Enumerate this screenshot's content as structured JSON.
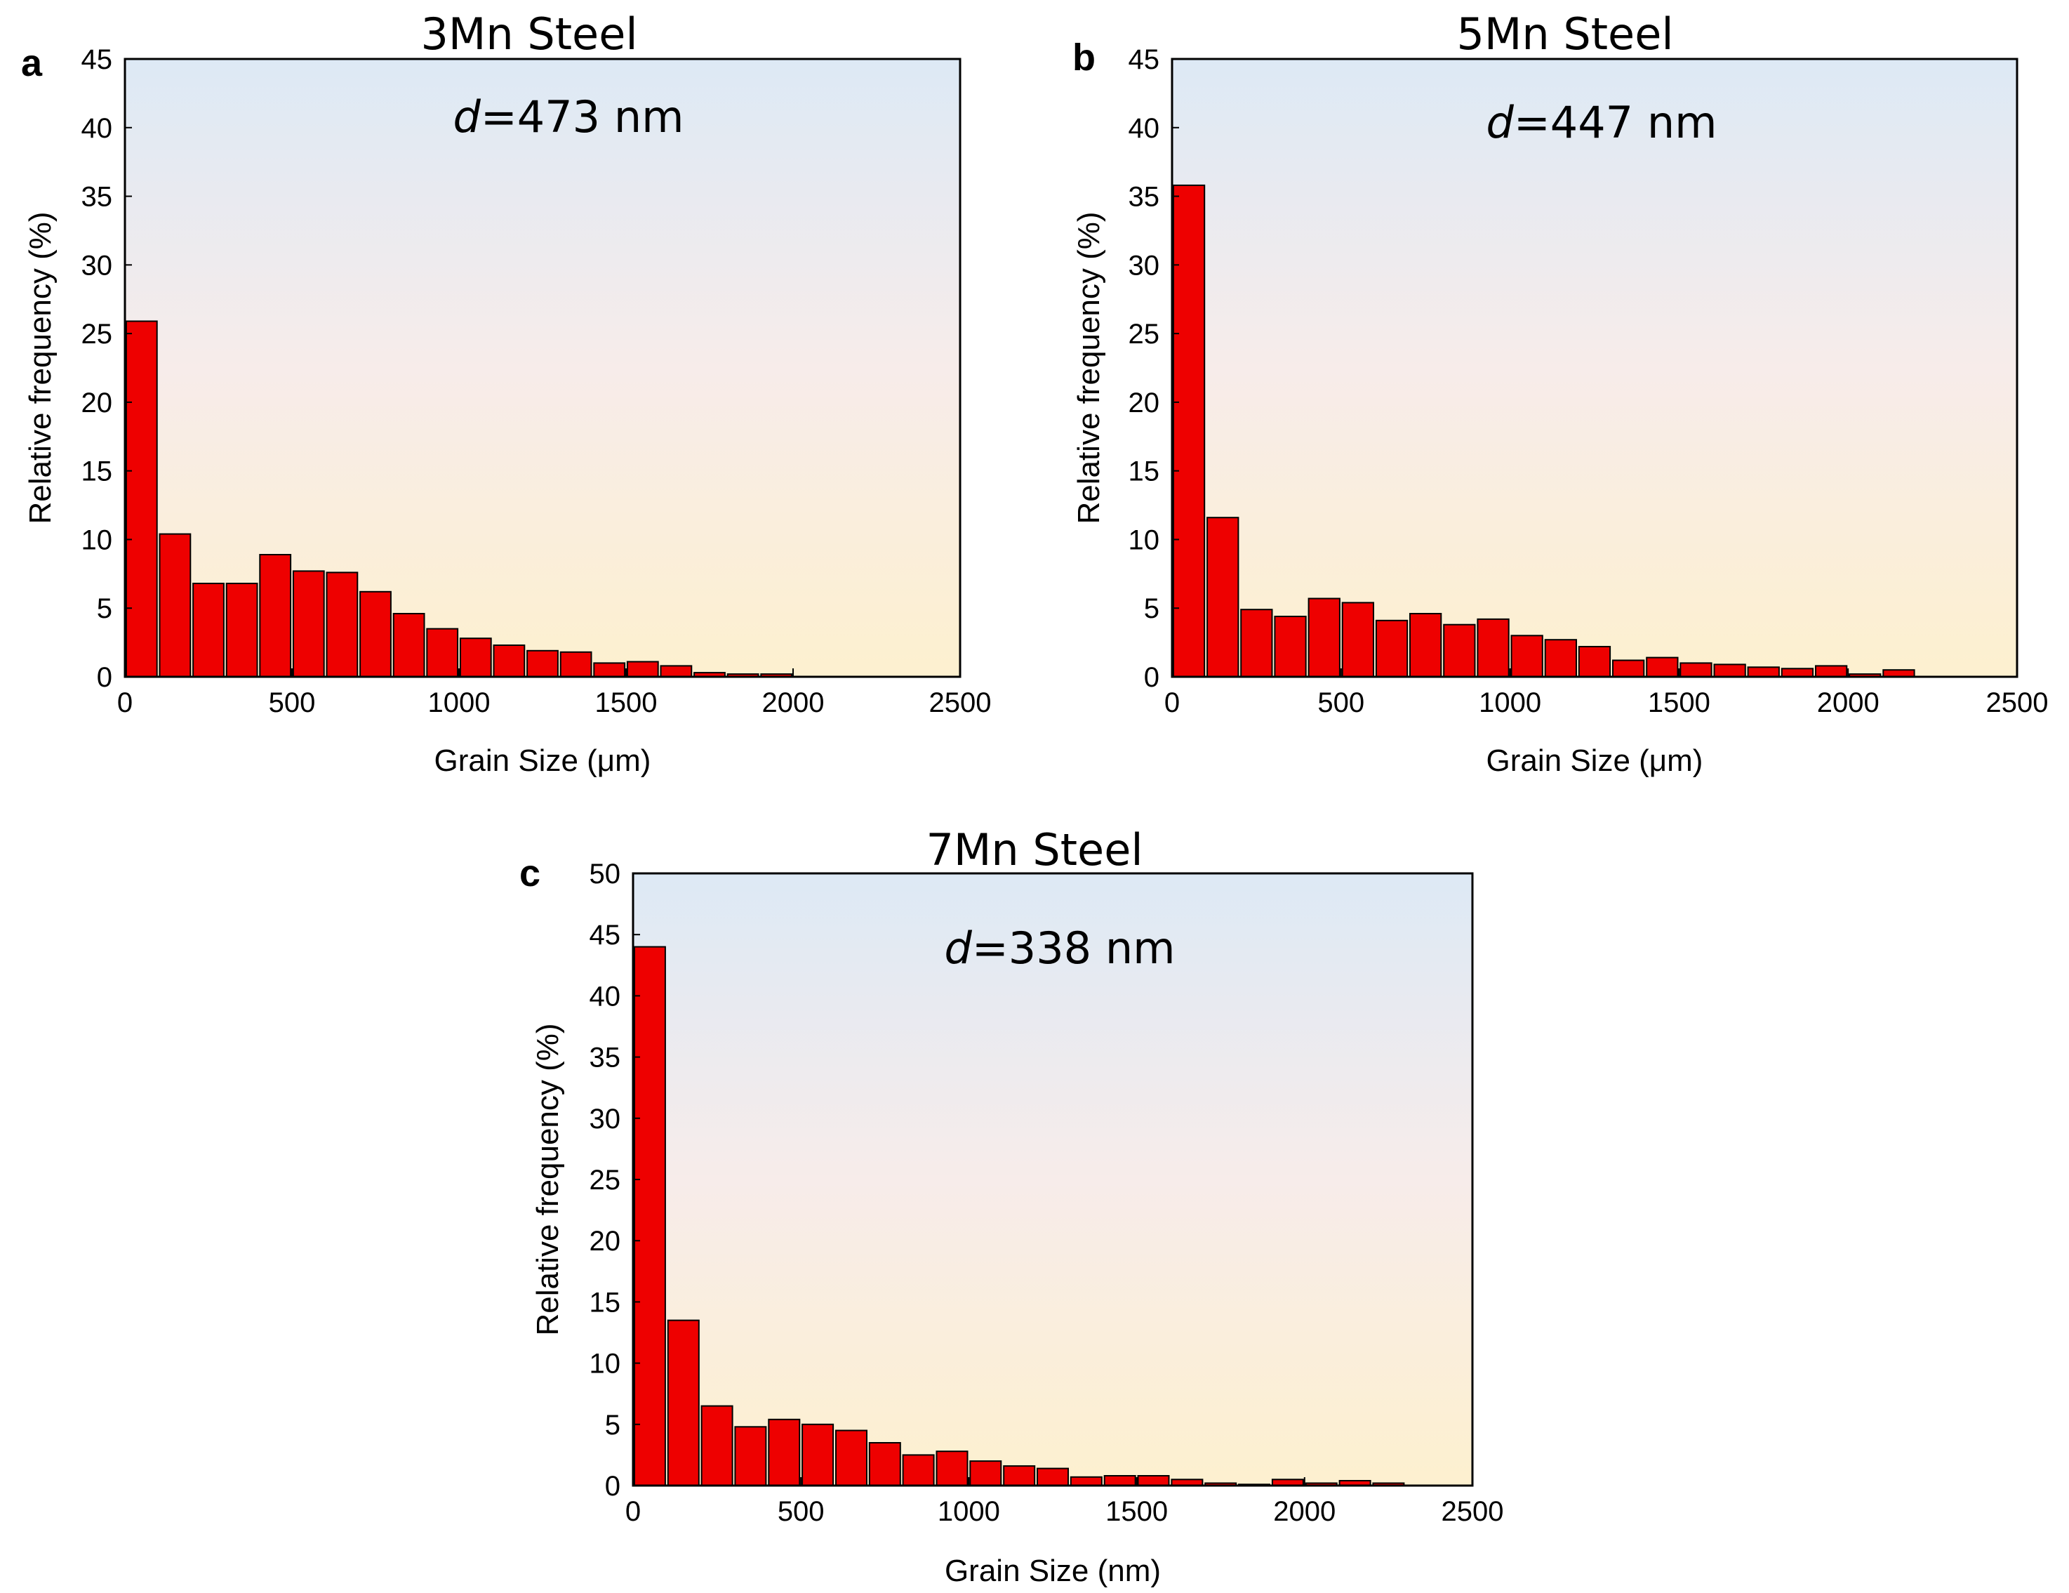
{
  "colors": {
    "bar": "#ee0000",
    "bg_top": "#dde9f5",
    "bg_mid": "#f7ecea",
    "bg_bottom": "#fdf0cf"
  },
  "chart_data": [
    {
      "type": "bar",
      "letter": "a",
      "title": "3Mn Steel",
      "annotation": {
        "var": "d",
        "text": "=473 nm"
      },
      "xlabel": "Grain Size (μm)",
      "ylabel": "Relative frequency (%)",
      "xlim": [
        0,
        2500
      ],
      "ylim": [
        0,
        45
      ],
      "xticks": [
        0,
        500,
        1000,
        1500,
        2000,
        2500
      ],
      "yticks": [
        0,
        5,
        10,
        15,
        20,
        25,
        30,
        35,
        40,
        45
      ],
      "bin_width": 100,
      "x": [
        0,
        100,
        200,
        300,
        400,
        500,
        600,
        700,
        800,
        900,
        1000,
        1100,
        1200,
        1300,
        1400,
        1500,
        1600,
        1700,
        1800,
        1900
      ],
      "values": [
        25.9,
        10.4,
        6.8,
        6.8,
        8.9,
        7.7,
        7.6,
        6.2,
        4.6,
        3.5,
        2.8,
        2.3,
        1.9,
        1.8,
        1.0,
        1.1,
        0.8,
        0.3,
        0.2,
        0.2
      ]
    },
    {
      "type": "bar",
      "letter": "b",
      "title": "5Mn Steel",
      "annotation": {
        "var": "d",
        "text": "=447 nm"
      },
      "xlabel": "Grain Size (μm)",
      "ylabel": "Relative frequency (%)",
      "xlim": [
        0,
        2500
      ],
      "ylim": [
        0,
        45
      ],
      "xticks": [
        0,
        500,
        1000,
        1500,
        2000,
        2500
      ],
      "yticks": [
        0,
        5,
        10,
        15,
        20,
        25,
        30,
        35,
        40,
        45
      ],
      "bin_width": 100,
      "x": [
        0,
        100,
        200,
        300,
        400,
        500,
        600,
        700,
        800,
        900,
        1000,
        1100,
        1200,
        1300,
        1400,
        1500,
        1600,
        1700,
        1800,
        1900,
        2000,
        2100
      ],
      "values": [
        35.8,
        11.6,
        4.9,
        4.4,
        5.7,
        5.4,
        4.1,
        4.6,
        3.8,
        4.2,
        3.0,
        2.7,
        2.2,
        1.2,
        1.4,
        1.0,
        0.9,
        0.7,
        0.6,
        0.8,
        0.2,
        0.5
      ]
    },
    {
      "type": "bar",
      "letter": "c",
      "title": "7Mn Steel",
      "annotation": {
        "var": "d",
        "text": "=338 nm"
      },
      "xlabel": "Grain Size (nm)",
      "ylabel": "Relative frequency (%)",
      "xlim": [
        0,
        2500
      ],
      "ylim": [
        0,
        50
      ],
      "xticks": [
        0,
        500,
        1000,
        1500,
        2000,
        2500
      ],
      "yticks": [
        0,
        5,
        10,
        15,
        20,
        25,
        30,
        35,
        40,
        45,
        50
      ],
      "bin_width": 100,
      "x": [
        0,
        100,
        200,
        300,
        400,
        500,
        600,
        700,
        800,
        900,
        1000,
        1100,
        1200,
        1300,
        1400,
        1500,
        1600,
        1700,
        1800,
        1900,
        2000,
        2100,
        2200
      ],
      "values": [
        44.0,
        13.5,
        6.5,
        4.8,
        5.4,
        5.0,
        4.5,
        3.5,
        2.5,
        2.8,
        2.0,
        1.6,
        1.4,
        0.7,
        0.8,
        0.8,
        0.5,
        0.2,
        0.1,
        0.5,
        0.2,
        0.4,
        0.2
      ]
    }
  ]
}
